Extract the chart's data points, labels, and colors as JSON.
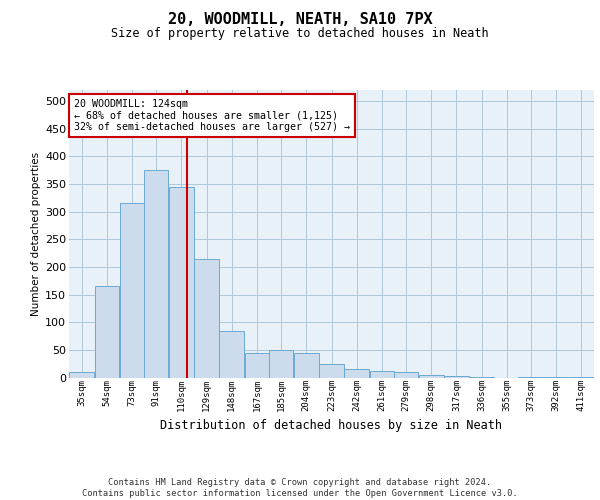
{
  "title": "20, WOODMILL, NEATH, SA10 7PX",
  "subtitle": "Size of property relative to detached houses in Neath",
  "xlabel": "Distribution of detached houses by size in Neath",
  "ylabel": "Number of detached properties",
  "footer_line1": "Contains HM Land Registry data © Crown copyright and database right 2024.",
  "footer_line2": "Contains public sector information licensed under the Open Government Licence v3.0.",
  "bar_color": "#ccdcec",
  "bar_edge_color": "#6aaad4",
  "grid_color": "#aec8dc",
  "bg_color": "#e8f0f8",
  "vline_color": "#cc0000",
  "annotation_box_color": "#cc0000",
  "annotation_text": "20 WOODMILL: 124sqm\n← 68% of detached houses are smaller (1,125)\n32% of semi-detached houses are larger (527) →",
  "categories": [
    "35sqm",
    "54sqm",
    "73sqm",
    "91sqm",
    "110sqm",
    "129sqm",
    "148sqm",
    "167sqm",
    "185sqm",
    "204sqm",
    "223sqm",
    "242sqm",
    "261sqm",
    "279sqm",
    "298sqm",
    "317sqm",
    "336sqm",
    "355sqm",
    "373sqm",
    "392sqm",
    "411sqm"
  ],
  "bin_edges": [
    35,
    54,
    73,
    91,
    110,
    129,
    148,
    167,
    185,
    204,
    223,
    242,
    261,
    279,
    298,
    317,
    336,
    355,
    373,
    392,
    411
  ],
  "bin_width": 19,
  "values": [
    10,
    165,
    315,
    375,
    345,
    215,
    85,
    45,
    50,
    45,
    25,
    15,
    12,
    10,
    5,
    2,
    1,
    0,
    1,
    1,
    1
  ],
  "vline_x": 124,
  "ylim": [
    0,
    520
  ],
  "yticks": [
    0,
    50,
    100,
    150,
    200,
    250,
    300,
    350,
    400,
    450,
    500
  ]
}
